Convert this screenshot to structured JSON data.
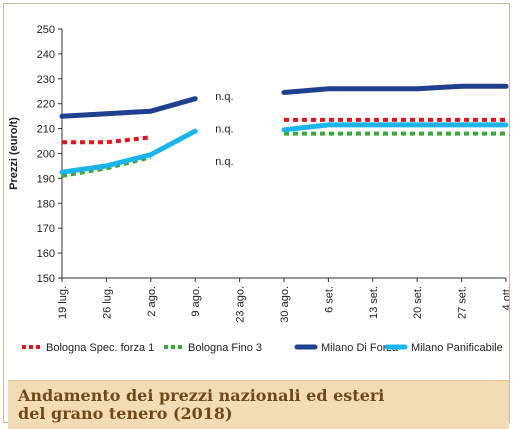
{
  "chart_data": {
    "type": "line",
    "title": "",
    "ylabel": "Prezzi (euro/t)",
    "xlabel": "",
    "ylim": [
      150,
      250
    ],
    "yticks": [
      150,
      160,
      170,
      180,
      190,
      200,
      210,
      220,
      230,
      240,
      250
    ],
    "categories": [
      "19 lug.",
      "26 lug.",
      "2 ago.",
      "9 ago.",
      "23 ago.",
      "30 ago.",
      "6 set.",
      "13 set.",
      "20 set.",
      "27 set.",
      "4 ott."
    ],
    "grid": false,
    "legend_position": "bottom",
    "series": [
      {
        "name": "Bologna Spec. forza 1",
        "color": "#e3141c",
        "style": "dotted",
        "values": [
          204.5,
          204.5,
          206.5,
          null,
          null,
          213.5,
          213.5,
          213.5,
          213.5,
          213.5,
          213.5
        ]
      },
      {
        "name": "Bologna Fino 3",
        "color": "#3aa93a",
        "style": "dotted",
        "values": [
          191,
          194,
          198.5,
          null,
          null,
          208,
          208,
          208,
          208,
          208,
          208
        ]
      },
      {
        "name": "Milano Di Forza",
        "color": "#1f3f8f",
        "style": "solid",
        "values": [
          215,
          216,
          217,
          222,
          null,
          224.5,
          226,
          226,
          226,
          227,
          227
        ]
      },
      {
        "name": "Milano Panificabile",
        "color": "#1ab4e8",
        "style": "solid",
        "values": [
          192.5,
          195,
          199.5,
          209,
          null,
          209.5,
          211.5,
          211.5,
          211.5,
          211.5,
          211.5
        ]
      }
    ],
    "annotations": [
      {
        "text": "n.q.",
        "category": "9 ago.",
        "y": 223
      },
      {
        "text": "n.q.",
        "category": "9 ago.",
        "y": 210
      },
      {
        "text": "n.q.",
        "category": "9 ago.",
        "y": 197
      }
    ]
  },
  "footer": {
    "title_line1": "Andamento dei prezzi nazionali ed esteri",
    "title_line2": "del grano tenero (2018)"
  }
}
